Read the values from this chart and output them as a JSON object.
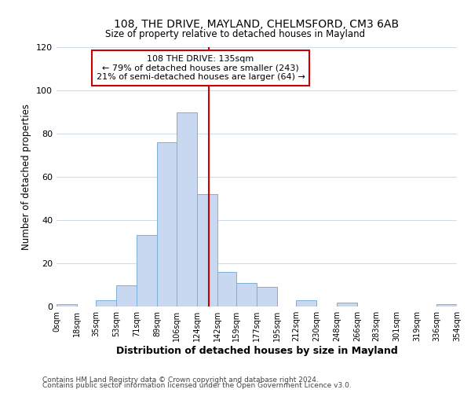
{
  "title": "108, THE DRIVE, MAYLAND, CHELMSFORD, CM3 6AB",
  "subtitle": "Size of property relative to detached houses in Mayland",
  "xlabel": "Distribution of detached houses by size in Mayland",
  "ylabel": "Number of detached properties",
  "bar_color": "#c8d8f0",
  "bar_edge_color": "#7ab0d8",
  "background_color": "#ffffff",
  "grid_color": "#ccdcec",
  "bins": [
    0,
    18,
    35,
    53,
    71,
    89,
    106,
    124,
    142,
    159,
    177,
    195,
    212,
    230,
    248,
    266,
    283,
    301,
    319,
    336,
    354
  ],
  "counts": [
    1,
    0,
    3,
    10,
    33,
    76,
    90,
    52,
    16,
    11,
    9,
    0,
    3,
    0,
    2,
    0,
    0,
    0,
    0,
    1
  ],
  "ref_line_x": 135,
  "ref_line_color": "#cc0000",
  "ylim": [
    0,
    120
  ],
  "yticks": [
    0,
    20,
    40,
    60,
    80,
    100,
    120
  ],
  "xtick_labels": [
    "0sqm",
    "18sqm",
    "35sqm",
    "53sqm",
    "71sqm",
    "89sqm",
    "106sqm",
    "124sqm",
    "142sqm",
    "159sqm",
    "177sqm",
    "195sqm",
    "212sqm",
    "230sqm",
    "248sqm",
    "266sqm",
    "283sqm",
    "301sqm",
    "319sqm",
    "336sqm",
    "354sqm"
  ],
  "annotation_title": "108 THE DRIVE: 135sqm",
  "annotation_line1": "← 79% of detached houses are smaller (243)",
  "annotation_line2": "21% of semi-detached houses are larger (64) →",
  "annotation_box_color": "#ffffff",
  "annotation_box_edge": "#cc0000",
  "footer1": "Contains HM Land Registry data © Crown copyright and database right 2024.",
  "footer2": "Contains public sector information licensed under the Open Government Licence v3.0."
}
